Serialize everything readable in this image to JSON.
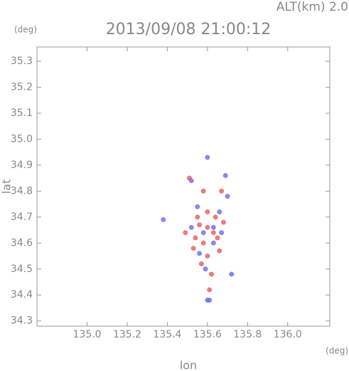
{
  "chart_data": {
    "type": "scatter",
    "title": "2013/09/08 21:00:12",
    "subtitle": "ALT(km) 2.0",
    "y_unit": "(deg)",
    "x_unit": "(deg)",
    "x_label": "lon",
    "y_label": "lat",
    "xlim": [
      134.75,
      136.21
    ],
    "ylim": [
      34.28,
      35.355
    ],
    "xticks": [
      {
        "value": 135,
        "label": "135.0"
      },
      135.2,
      135.4,
      135.6,
      135.8,
      {
        "value": 136,
        "label": "136.0"
      }
    ],
    "yticks": [
      34.3,
      34.4,
      34.5,
      34.6,
      34.7,
      34.8,
      34.9,
      {
        "value": 35,
        "label": "35.0"
      },
      35.1,
      35.2,
      35.3
    ],
    "series": [
      {
        "color": "#e85a5a",
        "x": [
          135.51,
          135.58,
          135.67,
          135.55,
          135.6,
          135.63,
          135.54,
          135.58,
          135.65,
          135.6,
          135.57,
          135.62,
          135.61,
          135.49,
          135.68,
          135.53,
          135.66,
          135.56,
          135.6,
          135.64
        ],
        "y": [
          34.85,
          34.8,
          34.8,
          34.7,
          34.66,
          34.64,
          34.62,
          34.6,
          34.62,
          34.55,
          34.52,
          34.48,
          34.42,
          34.64,
          34.68,
          34.58,
          34.57,
          34.67,
          34.72,
          34.7
        ]
      },
      {
        "color": "#6a6af0",
        "x": [
          135.61,
          135.6,
          135.69,
          135.52,
          135.7,
          135.58,
          135.63,
          135.56,
          135.72,
          135.67,
          135.52,
          135.59,
          135.6,
          135.38,
          135.63,
          135.55,
          135.66
        ],
        "y": [
          34.38,
          34.38,
          34.86,
          34.84,
          34.78,
          34.64,
          34.6,
          34.56,
          34.48,
          34.64,
          34.66,
          34.5,
          34.93,
          34.69,
          34.66,
          34.74,
          34.72
        ]
      }
    ]
  }
}
